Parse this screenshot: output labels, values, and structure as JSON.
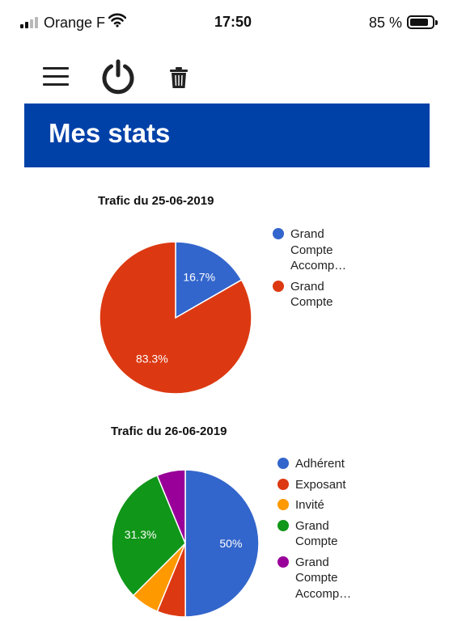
{
  "status_bar": {
    "carrier": "Orange F",
    "time": "17:50",
    "battery": "85 %",
    "battery_level": 0.85
  },
  "toolbar": {
    "menu_icon": "hamburger-menu-icon",
    "power_icon": "power-icon",
    "trash_icon": "trash-icon"
  },
  "page": {
    "title": "Mes stats"
  },
  "colors": {
    "banner": "#0041a8",
    "blue": "#3366cc",
    "red": "#dc3912",
    "orange": "#ff9900",
    "green": "#109618",
    "purple": "#990099"
  },
  "chart_data": [
    {
      "type": "pie",
      "title": "Trafic du 25-06-2019",
      "legend_position": "right",
      "categories": [
        "Grand Compte Accomp…",
        "Grand Compte"
      ],
      "values": [
        16.7,
        83.3
      ],
      "value_labels": [
        "16.7%",
        "83.3%"
      ],
      "colors": [
        "#3366cc",
        "#dc3912"
      ]
    },
    {
      "type": "pie",
      "title": "Trafic du 26-06-2019",
      "legend_position": "right",
      "categories": [
        "Adhérent",
        "Exposant",
        "Invité",
        "Grand Compte",
        "Grand Compte Accomp…"
      ],
      "values": [
        50,
        6.25,
        6.25,
        31.3,
        6.25
      ],
      "value_labels": [
        "50%",
        "",
        "",
        "31.3%",
        ""
      ],
      "colors": [
        "#3366cc",
        "#dc3912",
        "#ff9900",
        "#109618",
        "#990099"
      ]
    }
  ]
}
